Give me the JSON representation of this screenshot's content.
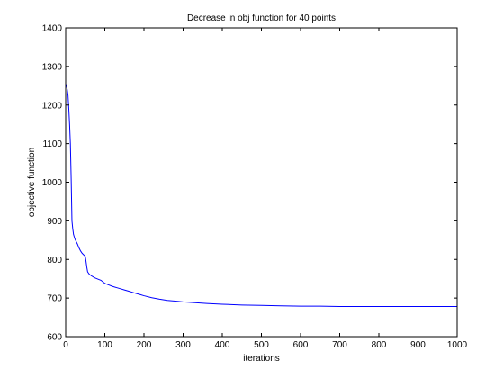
{
  "chart_data": {
    "type": "line",
    "title": "Decrease in obj function for 40 points",
    "xlabel": "iterations",
    "ylabel": "objective function",
    "xlim": [
      0,
      1000
    ],
    "ylim": [
      600,
      1400
    ],
    "xticks": [
      0,
      100,
      200,
      300,
      400,
      500,
      600,
      700,
      800,
      900,
      1000
    ],
    "yticks": [
      600,
      700,
      800,
      900,
      1000,
      1100,
      1200,
      1300,
      1400
    ],
    "grid": false,
    "legend": "none",
    "series": [
      {
        "color": "#0000ff",
        "x": [
          0,
          2,
          4,
          6,
          8,
          10,
          12,
          14,
          16,
          18,
          20,
          22,
          24,
          26,
          30,
          34,
          38,
          42,
          46,
          50,
          52,
          54,
          56,
          58,
          60,
          65,
          70,
          75,
          80,
          85,
          90,
          95,
          100,
          110,
          120,
          130,
          140,
          150,
          160,
          170,
          180,
          190,
          200,
          220,
          240,
          260,
          280,
          300,
          330,
          360,
          400,
          450,
          500,
          550,
          600,
          650,
          700,
          800,
          900,
          1000
        ],
        "y": [
          1255,
          1250,
          1240,
          1225,
          1190,
          1150,
          1100,
          1010,
          900,
          880,
          865,
          858,
          852,
          848,
          840,
          830,
          822,
          816,
          812,
          808,
          795,
          780,
          768,
          765,
          762,
          758,
          755,
          752,
          750,
          748,
          746,
          742,
          738,
          734,
          730,
          727,
          724,
          721,
          718,
          715,
          712,
          709,
          706,
          701,
          697,
          694,
          692,
          690,
          688,
          686,
          684,
          682,
          681,
          680,
          679,
          679,
          678,
          678,
          678,
          678
        ]
      }
    ]
  }
}
